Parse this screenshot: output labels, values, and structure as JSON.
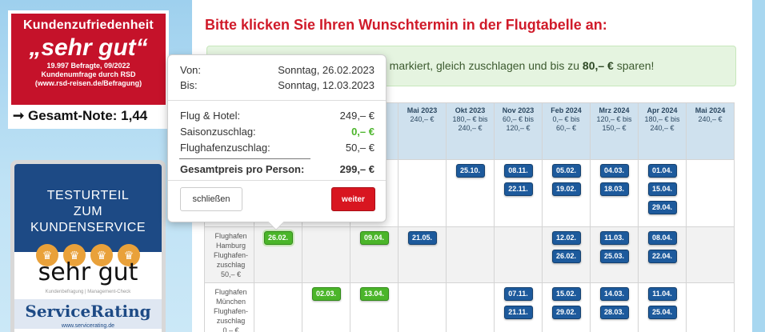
{
  "badge_rsd": {
    "title": "Kundenzufriedenheit",
    "grade": "„sehr gut“",
    "line1": "19.997 Befragte, 09/2022",
    "line2": "Kundenumfrage durch RSD",
    "line3": "(www.rsd-reisen.de/Befragung)",
    "overall": "➞ Gesamt-Note: 1,44"
  },
  "badge_service": {
    "line1": "TESTURTEIL",
    "line2": "ZUM KUNDENSERVICE",
    "grade": "sehr gut",
    "small": "Kundenbefragung | Management-Check",
    "brand": "ServiceRating",
    "url": "www.servicerating.de",
    "crown_icon": "♛"
  },
  "heading": "Bitte klicken Sie Ihren Wunschtermin in der Flugtabelle an:",
  "notice": {
    "text": "n markiert, gleich zuschlagen und bis zu ",
    "amount": "80,– €",
    "suffix": " sparen!"
  },
  "table": {
    "months": [
      {
        "month": "",
        "p1": "",
        "p2": ""
      },
      {
        "month": "",
        "p1": "",
        "p2": ""
      },
      {
        "month": "",
        "p1": "",
        "p2": ""
      },
      {
        "month": "3",
        "p1": "€",
        "p2": "€"
      },
      {
        "month": "Mai 2023",
        "p1": "240,– €",
        "p2": ""
      },
      {
        "month": "Okt 2023",
        "p1": "180,– € bis",
        "p2": "240,– €"
      },
      {
        "month": "Nov 2023",
        "p1": "60,– € bis",
        "p2": "120,– €"
      },
      {
        "month": "Feb 2024",
        "p1": "0,– € bis",
        "p2": "60,– €"
      },
      {
        "month": "Mrz 2024",
        "p1": "120,– € bis",
        "p2": "150,– €"
      },
      {
        "month": "Apr 2024",
        "p1": "180,– € bis",
        "p2": "240,– €"
      },
      {
        "month": "Mai 2024",
        "p1": "240,– €",
        "p2": ""
      }
    ],
    "row_hamburg": {
      "l1": "Flughafen",
      "l2": "Hamburg",
      "l3": "Flughafen-",
      "l4": "zuschlag",
      "l5": "50,– €",
      "c_feb23": "26.02.",
      "c_apr23": "09.04.",
      "c_may23": "21.05.",
      "c_feb24_1": "12.02.",
      "c_feb24_2": "26.02.",
      "c_mar24_1": "11.03.",
      "c_mar24_2": "25.03.",
      "c_apr24_1": "08.04.",
      "c_apr24_2": "22.04."
    },
    "row_top": {
      "c_okt23": "25.10.",
      "c_nov23_1": "08.11.",
      "c_nov23_2": "22.11.",
      "c_feb24_1": "05.02.",
      "c_feb24_2": "19.02.",
      "c_mar24_1": "04.03.",
      "c_mar24_2": "18.03.",
      "c_apr24_1": "01.04.",
      "c_apr24_2": "15.04.",
      "c_apr24_3": "29.04."
    },
    "row_munich": {
      "l1": "Flughafen",
      "l2": "München",
      "l3": "Flughafen-",
      "l4": "zuschlag",
      "l5": "0,– €",
      "c_mar23": "02.03.",
      "c_apr23": "13.04.",
      "c_nov23_1": "07.11.",
      "c_nov23_2": "21.11.",
      "c_feb24_1": "15.02.",
      "c_feb24_2": "29.02.",
      "c_mar24_1": "14.03.",
      "c_mar24_2": "28.03.",
      "c_apr24_1": "11.04.",
      "c_apr24_2": "25.04."
    }
  },
  "popover": {
    "von_label": "Von:",
    "von_value": "Sonntag, 26.02.2023",
    "bis_label": "Bis:",
    "bis_value": "Sonntag, 12.03.2023",
    "hotel_label": "Flug & Hotel:",
    "hotel_value": "249,– €",
    "saison_label": "Saisonzuschlag:",
    "saison_value": "0,– €",
    "airport_label": "Flughafenzuschlag:",
    "airport_value": "50,– €",
    "total_label": "Gesamtpreis pro Person:",
    "total_value": "299,– €",
    "close_label": "schließen",
    "next_label": "weiter"
  },
  "colors": {
    "heading_red": "#d01b2a",
    "chip_blue": "#1d5a9c",
    "chip_green": "#4bb52a",
    "button_red": "#d81620"
  }
}
